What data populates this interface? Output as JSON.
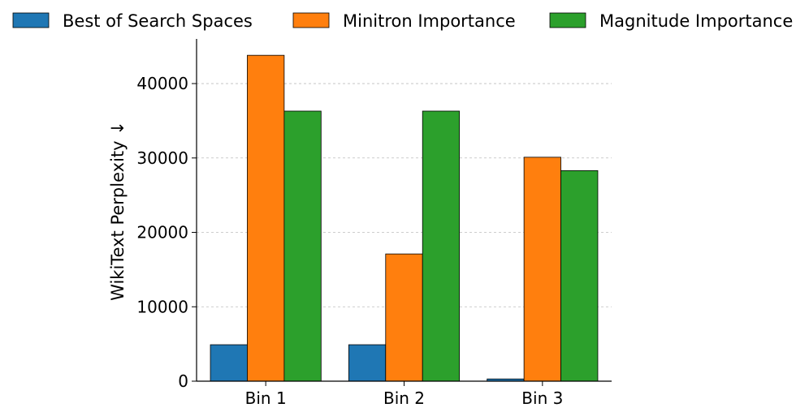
{
  "chart_data": {
    "type": "bar",
    "title": "",
    "xlabel": "",
    "ylabel": "WikiText Perplexity ↓",
    "categories": [
      "Bin 1",
      "Bin 2",
      "Bin 3"
    ],
    "series": [
      {
        "name": "Best of Search Spaces",
        "color": "#1f77b4",
        "values": [
          4900,
          4900,
          300
        ]
      },
      {
        "name": "Minitron Importance",
        "color": "#ff7f0e",
        "values": [
          43800,
          17100,
          30100
        ]
      },
      {
        "name": "Magnitude Importance",
        "color": "#2ca02c",
        "values": [
          36300,
          36300,
          28300
        ]
      }
    ],
    "ylim": [
      0,
      46000
    ],
    "yticks": [
      0,
      10000,
      20000,
      30000,
      40000
    ],
    "grid": "y-dashed",
    "legend": "top"
  }
}
